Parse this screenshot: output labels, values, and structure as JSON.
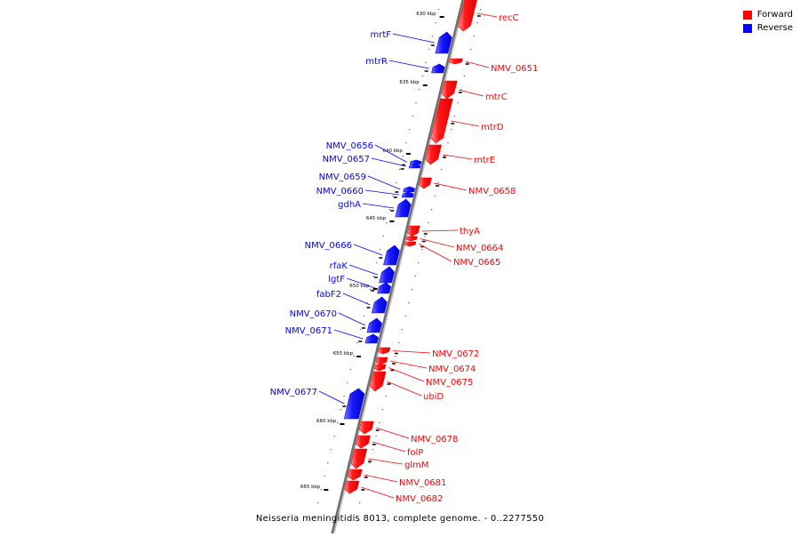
{
  "legend": {
    "forward": {
      "label": "Forward",
      "color": "#ff0000"
    },
    "reverse": {
      "label": "Reverse",
      "color": "#0000ff"
    }
  },
  "caption": "Neisseria meningitidis 8013, complete genome. - 0..2277550",
  "ticks": [
    {
      "label": "630 kbp",
      "kbp": 630
    },
    {
      "label": "635 kbp",
      "kbp": 635
    },
    {
      "label": "640 kbp",
      "kbp": 640
    },
    {
      "label": "645 kbp",
      "kbp": 645
    },
    {
      "label": "650 kbp",
      "kbp": 650
    },
    {
      "label": "655 kbp",
      "kbp": 655
    },
    {
      "label": "660 kbp",
      "kbp": 660
    },
    {
      "label": "665 kbp",
      "kbp": 665
    }
  ],
  "genes": [
    {
      "name": "recC",
      "strand": "forward"
    },
    {
      "name": "NMV_0651",
      "strand": "forward"
    },
    {
      "name": "mtrC",
      "strand": "forward"
    },
    {
      "name": "mtrD",
      "strand": "forward"
    },
    {
      "name": "mtrE",
      "strand": "forward"
    },
    {
      "name": "NMV_0658",
      "strand": "forward"
    },
    {
      "name": "thyA",
      "strand": "forward"
    },
    {
      "name": "NMV_0664",
      "strand": "forward"
    },
    {
      "name": "NMV_0665",
      "strand": "forward"
    },
    {
      "name": "NMV_0672",
      "strand": "forward"
    },
    {
      "name": "NMV_0674",
      "strand": "forward"
    },
    {
      "name": "NMV_0675",
      "strand": "forward"
    },
    {
      "name": "ubiD",
      "strand": "forward"
    },
    {
      "name": "NMV_0678",
      "strand": "forward"
    },
    {
      "name": "folP",
      "strand": "forward"
    },
    {
      "name": "glmM",
      "strand": "forward"
    },
    {
      "name": "NMV_0681",
      "strand": "forward"
    },
    {
      "name": "NMV_0682",
      "strand": "forward"
    },
    {
      "name": "mrtF",
      "strand": "reverse"
    },
    {
      "name": "mtrR",
      "strand": "reverse"
    },
    {
      "name": "NMV_0656",
      "strand": "reverse"
    },
    {
      "name": "NMV_0657",
      "strand": "reverse"
    },
    {
      "name": "NMV_0659",
      "strand": "reverse"
    },
    {
      "name": "NMV_0660",
      "strand": "reverse"
    },
    {
      "name": "gdhA",
      "strand": "reverse"
    },
    {
      "name": "NMV_0666",
      "strand": "reverse"
    },
    {
      "name": "rfaK",
      "strand": "reverse"
    },
    {
      "name": "lgtF",
      "strand": "reverse"
    },
    {
      "name": "fabF2",
      "strand": "reverse"
    },
    {
      "name": "NMV_0670",
      "strand": "reverse"
    },
    {
      "name": "NMV_0671",
      "strand": "reverse"
    },
    {
      "name": "NMV_0677",
      "strand": "reverse"
    }
  ]
}
